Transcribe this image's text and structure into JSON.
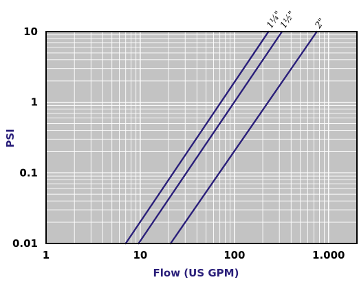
{
  "chart_data": {
    "type": "line",
    "title": "",
    "xlabel": "Flow (US GPM)",
    "ylabel": "PSI",
    "x_scale": "log",
    "y_scale": "log",
    "xlim": [
      1,
      2000
    ],
    "ylim": [
      0.01,
      10
    ],
    "x_ticks": [
      {
        "value": 1,
        "label": "1"
      },
      {
        "value": 10,
        "label": "10"
      },
      {
        "value": 100,
        "label": "100"
      },
      {
        "value": 1000,
        "label": "1.000"
      }
    ],
    "y_ticks": [
      {
        "value": 0.01,
        "label": "0.01"
      },
      {
        "value": 0.1,
        "label": "0.1"
      },
      {
        "value": 1,
        "label": "1"
      },
      {
        "value": 10,
        "label": "10"
      }
    ],
    "grid": true,
    "series": [
      {
        "name": "1¼\"",
        "x": [
          7,
          230
        ],
        "y": [
          0.01,
          10
        ]
      },
      {
        "name": "1½\"",
        "x": [
          9.6,
          320
        ],
        "y": [
          0.01,
          10
        ]
      },
      {
        "name": "2\"",
        "x": [
          21,
          750
        ],
        "y": [
          0.01,
          10
        ]
      }
    ],
    "colors": {
      "plot_background": "#c3c3c3",
      "grid": "#ffffff",
      "line": "#2a1f7a",
      "axis_title": "#2a1f7a",
      "frame": "#000000"
    }
  }
}
